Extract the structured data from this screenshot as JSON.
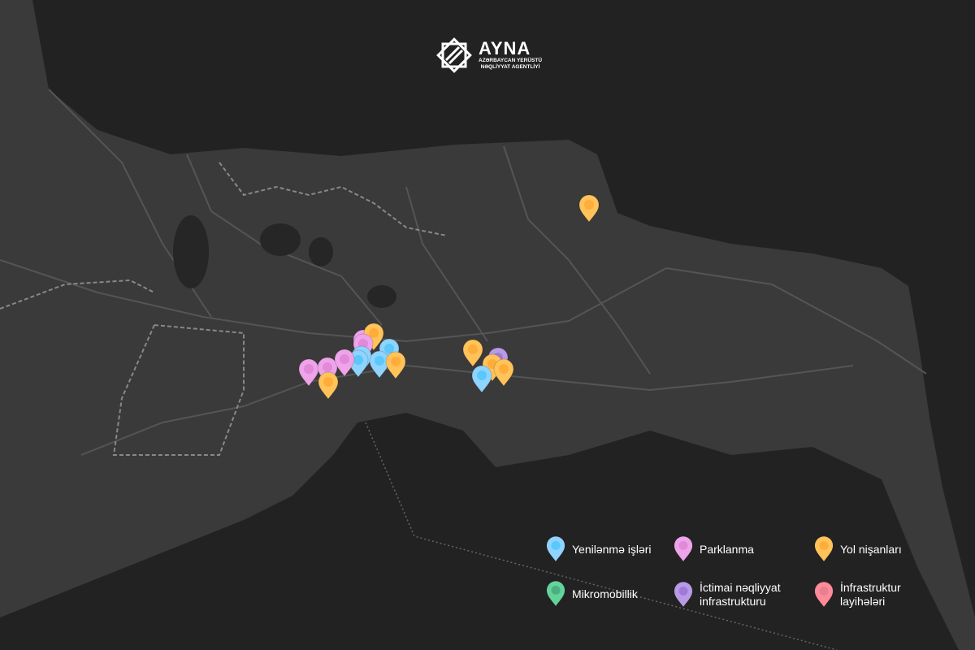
{
  "logo": {
    "name": "AYNA",
    "subtitle_line1": "AZƏRBAYCAN YERÜSTÜ",
    "subtitle_line2": "NƏQLİYYAT AGENTLİYİ"
  },
  "colors": {
    "sea": "#222222",
    "land": "#3a3a3a",
    "road": "#555555"
  },
  "categories": [
    {
      "key": "renovation",
      "label": "Yenilənmə işləri",
      "color": "#8fd3ff",
      "dot": "#5ac8fa"
    },
    {
      "key": "parking",
      "label": "Parklanma",
      "color": "#efa3ea",
      "dot": "#e08ad8"
    },
    {
      "key": "road_signs",
      "label": "Yol nişanları",
      "color": "#ffc35a",
      "dot": "#ffad3a"
    },
    {
      "key": "micromobility",
      "label": "Mikromobillik",
      "color": "#62d39a",
      "dot": "#4caf82"
    },
    {
      "key": "public_transport",
      "label": "İctimai nəqliyyat infrastrukturu",
      "color": "#b99ae6",
      "dot": "#a07ad8"
    },
    {
      "key": "infrastructure",
      "label": "İnfrastruktur layihələri",
      "color": "#ff8a9a",
      "dot": "#e6808e"
    }
  ],
  "markers": [
    "road_signs",
    "parking",
    "road_signs",
    "renovation",
    "parking",
    "renovation",
    "renovation",
    "parking",
    "parking",
    "parking",
    "renovation",
    "road_signs",
    "road_signs",
    "road_signs",
    "public_transport",
    "road_signs",
    "road_signs",
    "renovation",
    "road_signs"
  ]
}
